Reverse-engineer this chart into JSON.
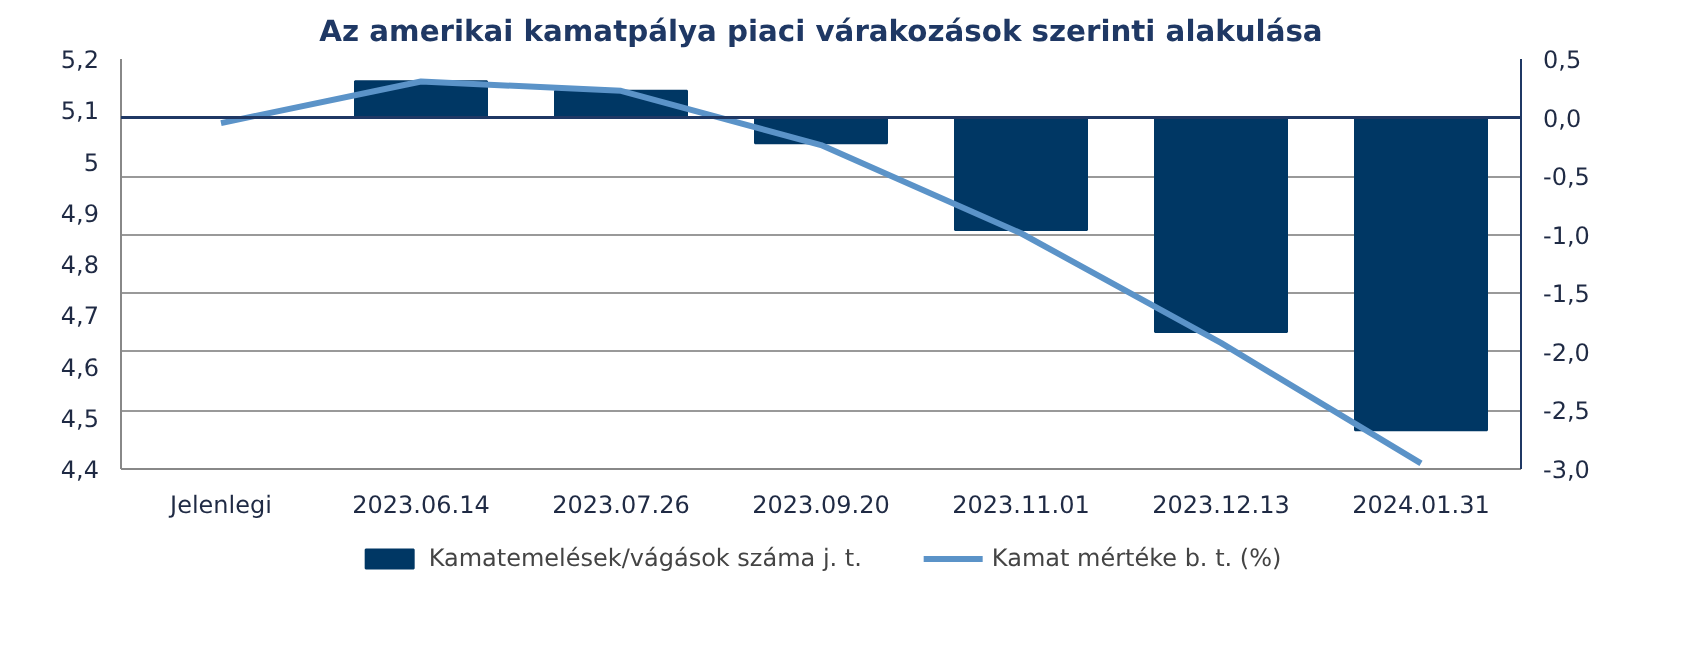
{
  "chart_data": {
    "type": "bar",
    "title": "Az amerikai kamatpálya piaci várakozások szerinti alakulása",
    "categories": [
      "Jelenlegi",
      "2023.06.14",
      "2023.07.26",
      "2023.09.20",
      "2023.11.01",
      "2023.12.13",
      "2024.01.31"
    ],
    "series": [
      {
        "name": "Kamatemelések/vágások száma j. t.",
        "type": "bar",
        "axis": "y2",
        "color": "#003764",
        "values": [
          null,
          0.31,
          0.23,
          -0.22,
          -0.96,
          -1.83,
          -2.67
        ]
      },
      {
        "name": "Kamat mértéke b. t. (%)",
        "type": "line",
        "color": "#5b93c8",
        "values": [
          5.075,
          5.156,
          5.138,
          5.032,
          4.86,
          4.646,
          4.411
        ]
      }
    ],
    "ylim": [
      4.4,
      5.2
    ],
    "yticks": [
      {
        "value": 4.4,
        "label": "4,4"
      },
      {
        "value": 4.5,
        "label": "4,5"
      },
      {
        "value": 4.6,
        "label": "4,6"
      },
      {
        "value": 4.7,
        "label": "4,7"
      },
      {
        "value": 4.8,
        "label": "4,8"
      },
      {
        "value": 4.9,
        "label": "4,9"
      },
      5,
      {
        "value": 5.1,
        "label": "5,1"
      },
      {
        "value": 5.2,
        "label": "5,2"
      }
    ],
    "y2lim": [
      -3.0,
      0.5
    ],
    "y2ticks": [
      {
        "value": 0.5,
        "label": "0,5"
      },
      {
        "value": 0,
        "label": "0,0"
      },
      {
        "value": -0.5,
        "label": "-0,5"
      },
      {
        "value": -1.0,
        "label": "-1,0"
      },
      {
        "value": -1.5,
        "label": "-1,5"
      },
      {
        "value": -2.0,
        "label": "-2,0"
      },
      {
        "value": -2.5,
        "label": "-2,5"
      },
      {
        "value": -3.0,
        "label": "-3,0"
      }
    ],
    "ref_lines": [
      {
        "axis": "y2",
        "value": 0,
        "color": "#1f3864"
      }
    ],
    "grid": "y2",
    "legend": "bottom",
    "line_style": "solid",
    "marker": "none"
  }
}
